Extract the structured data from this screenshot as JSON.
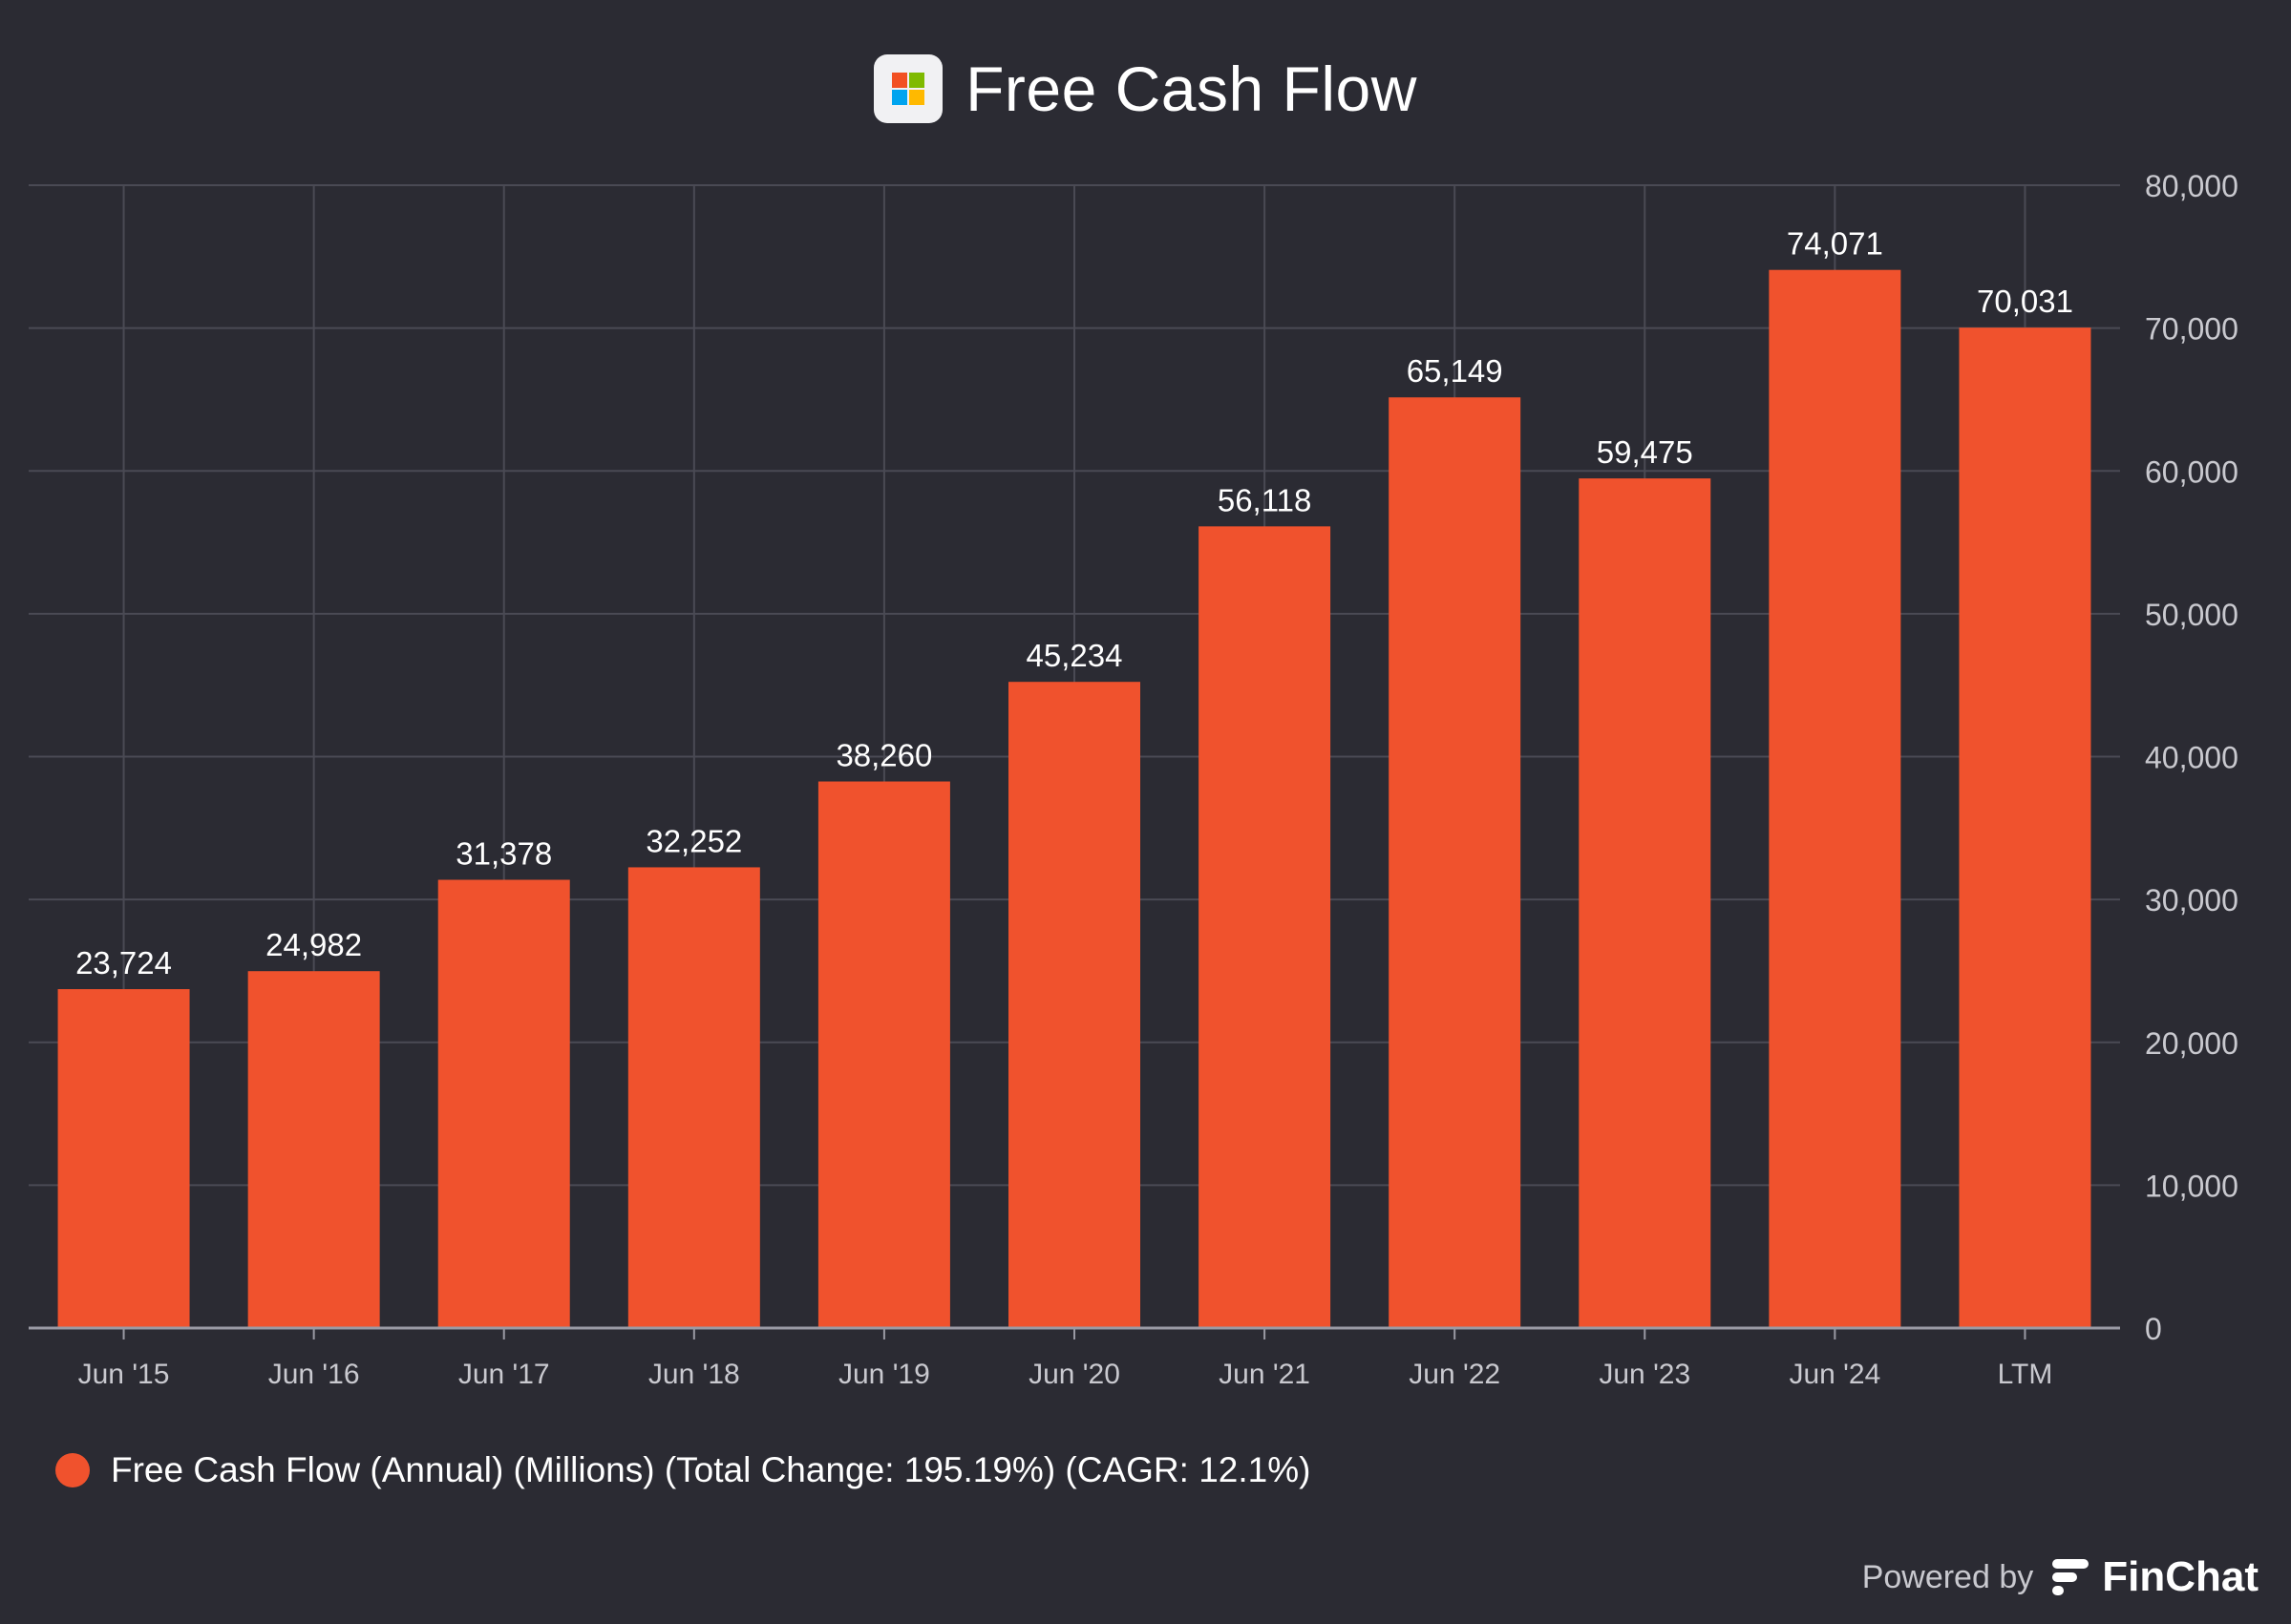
{
  "header": {
    "title": "Free Cash Flow",
    "logo_icon": "microsoft-logo-icon"
  },
  "legend": {
    "text": "Free Cash Flow (Annual) (Millions) (Total Change: 195.19%) (CAGR: 12.1%)",
    "marker_icon": "legend-dot-icon"
  },
  "footer": {
    "powered_label": "Powered by",
    "brand_name": "FinChat",
    "brand_icon": "finchat-logo-icon"
  },
  "colors": {
    "background": "#2b2b33",
    "bar": "#f0522d",
    "grid": "#4a4a54",
    "axis_text": "#c9c9cf"
  },
  "chart_data": {
    "type": "bar",
    "title": "Free Cash Flow",
    "xlabel": "",
    "ylabel": "",
    "categories": [
      "Jun '15",
      "Jun '16",
      "Jun '17",
      "Jun '18",
      "Jun '19",
      "Jun '20",
      "Jun '21",
      "Jun '22",
      "Jun '23",
      "Jun '24",
      "LTM"
    ],
    "series": [
      {
        "name": "Free Cash Flow (Annual) (Millions) (Total Change: 195.19%) (CAGR: 12.1%)",
        "values": [
          23724,
          24982,
          31378,
          32252,
          38260,
          45234,
          56118,
          65149,
          59475,
          74071,
          70031
        ],
        "labels": [
          "23,724",
          "24,982",
          "31,378",
          "32,252",
          "38,260",
          "45,234",
          "56,118",
          "65,149",
          "59,475",
          "74,071",
          "70,031"
        ]
      }
    ],
    "ylim": [
      0,
      80000
    ],
    "y_ticks": [
      0,
      10000,
      20000,
      30000,
      40000,
      50000,
      60000,
      70000,
      80000
    ],
    "y_tick_labels": [
      "0",
      "10,000",
      "20,000",
      "30,000",
      "40,000",
      "50,000",
      "60,000",
      "70,000",
      "80,000"
    ],
    "y_axis_side": "right",
    "grid": true,
    "legend_position": "bottom-left",
    "data_labels": true
  }
}
